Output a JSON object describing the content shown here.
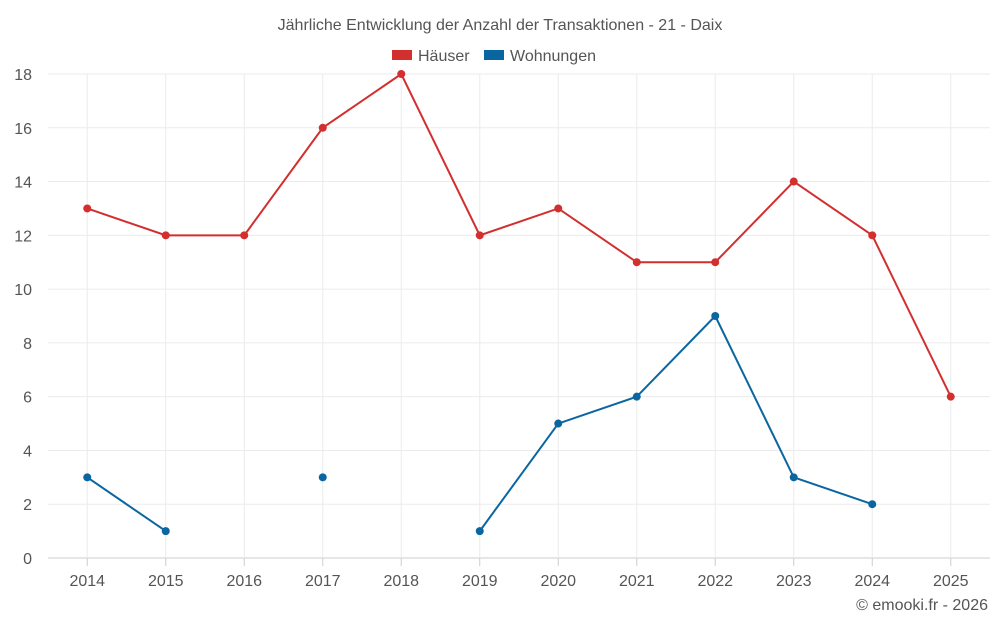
{
  "chart_data": {
    "type": "line",
    "title": "Jährliche Entwicklung der Anzahl der Transaktionen - 21 - Daix",
    "categories": [
      "2014",
      "2015",
      "2016",
      "2017",
      "2018",
      "2019",
      "2020",
      "2021",
      "2022",
      "2023",
      "2024",
      "2025"
    ],
    "ylim": [
      0,
      18
    ],
    "yticks": [
      0,
      2,
      4,
      6,
      8,
      10,
      12,
      14,
      16,
      18
    ],
    "ytick_labels": [
      "0",
      "2",
      "4",
      "6",
      "8",
      "10",
      "12",
      "14",
      "16",
      "18"
    ],
    "grid": true,
    "legend_position": "top-center",
    "series": [
      {
        "name": "Häuser",
        "color": "#d32f2f",
        "values": [
          13,
          12,
          12,
          16,
          18,
          12,
          13,
          11,
          11,
          14,
          12,
          6
        ]
      },
      {
        "name": "Wohnungen",
        "color": "#0a66a0",
        "values": [
          3,
          1,
          null,
          3,
          null,
          1,
          5,
          6,
          9,
          3,
          2,
          null
        ]
      }
    ],
    "credit": "© emooki.fr - 2026"
  }
}
